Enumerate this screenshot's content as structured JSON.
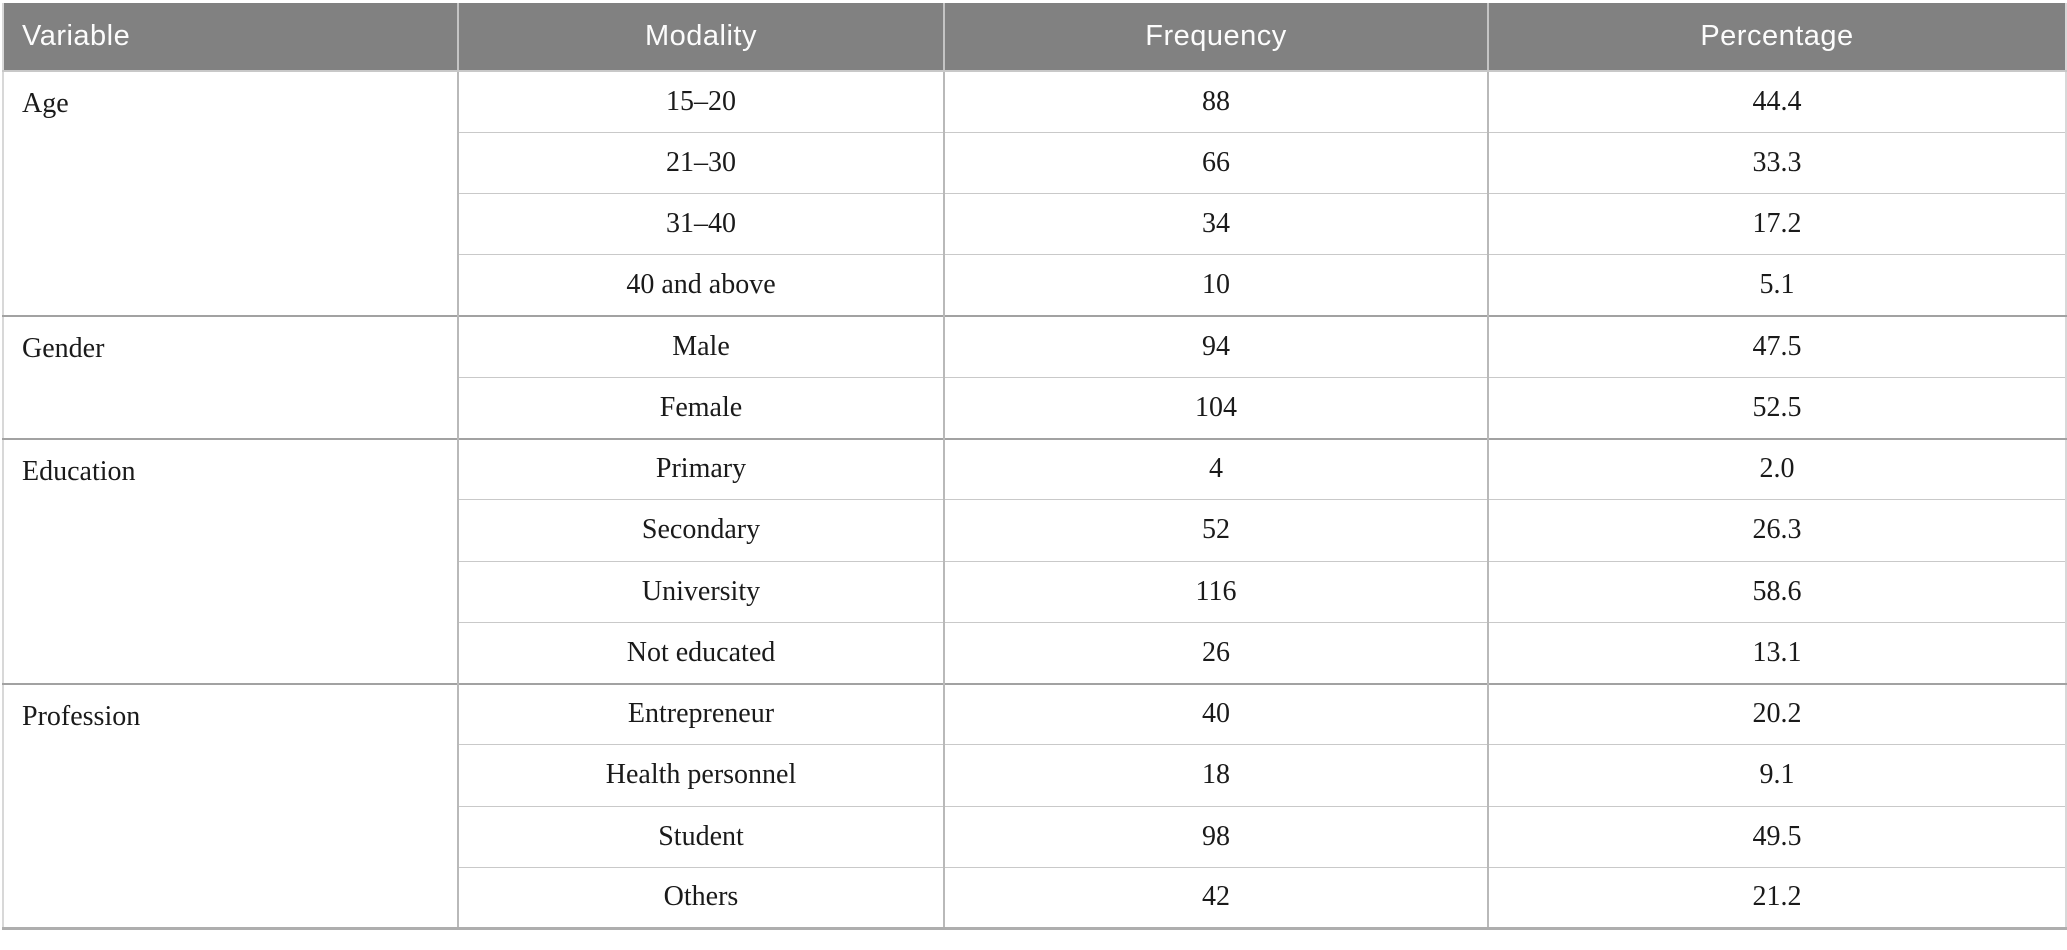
{
  "table": {
    "columns": [
      "Variable",
      "Modality",
      "Frequency",
      "Percentage"
    ],
    "groups": [
      {
        "variable": "Age",
        "rows": [
          {
            "modality": "15–20",
            "frequency": "88",
            "percentage": "44.4"
          },
          {
            "modality": "21–30",
            "frequency": "66",
            "percentage": "33.3"
          },
          {
            "modality": "31–40",
            "frequency": "34",
            "percentage": "17.2"
          },
          {
            "modality": "40 and above",
            "frequency": "10",
            "percentage": "5.1"
          }
        ]
      },
      {
        "variable": "Gender",
        "rows": [
          {
            "modality": "Male",
            "frequency": "94",
            "percentage": "47.5"
          },
          {
            "modality": "Female",
            "frequency": "104",
            "percentage": "52.5"
          }
        ]
      },
      {
        "variable": "Education",
        "rows": [
          {
            "modality": "Primary",
            "frequency": "4",
            "percentage": "2.0"
          },
          {
            "modality": "Secondary",
            "frequency": "52",
            "percentage": "26.3"
          },
          {
            "modality": "University",
            "frequency": "116",
            "percentage": "58.6"
          },
          {
            "modality": "Not educated",
            "frequency": "26",
            "percentage": "13.1"
          }
        ]
      },
      {
        "variable": "Profession",
        "rows": [
          {
            "modality": "Entrepreneur",
            "frequency": "40",
            "percentage": "20.2"
          },
          {
            "modality": "Health personnel",
            "frequency": "18",
            "percentage": "9.1"
          },
          {
            "modality": "Student",
            "frequency": "98",
            "percentage": "49.5"
          },
          {
            "modality": "Others",
            "frequency": "42",
            "percentage": "21.2"
          }
        ]
      }
    ],
    "colors": {
      "header_bg": "#818181",
      "header_text": "#fcfcfc",
      "body_text": "#1a1a1a",
      "inner_row_line": "#c9c9c9",
      "group_line": "#a2a2a2",
      "column_line": "#b9b9b9",
      "bottom_rule": "#aeaeae"
    }
  }
}
